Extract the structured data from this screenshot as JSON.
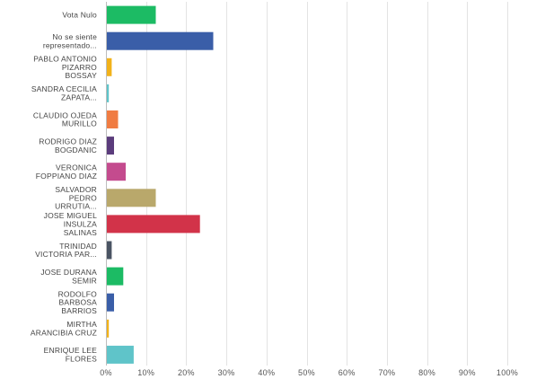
{
  "chart_data": {
    "type": "bar",
    "orientation": "horizontal",
    "title": "",
    "xlabel": "",
    "ylabel": "",
    "xlim": [
      0,
      100
    ],
    "grid": true,
    "legend": "none",
    "categories": [
      [
        "Vota Nulo"
      ],
      [
        "No se siente",
        "representado..."
      ],
      [
        "PABLO ANTONIO",
        "PIZARRO",
        "BOSSAY"
      ],
      [
        "SANDRA CECILIA",
        "ZAPATA..."
      ],
      [
        "CLAUDIO OJEDA",
        "MURILLO"
      ],
      [
        "RODRIGO DIAZ",
        "BOGDANIC"
      ],
      [
        "VERONICA",
        "FOPPIANO DIAZ"
      ],
      [
        "SALVADOR",
        "PEDRO",
        "URRUTIA..."
      ],
      [
        "JOSE MIGUEL",
        "INSULZA",
        "SALINAS"
      ],
      [
        "TRINIDAD",
        "VICTORIA PAR..."
      ],
      [
        "JOSE DURANA",
        "SEMIR"
      ],
      [
        "RODOLFO",
        "BARBOSA",
        "BARRIOS"
      ],
      [
        "MIRTHA",
        "ARANCIBIA CRUZ"
      ],
      [
        "ENRIQUE LEE",
        "FLORES"
      ]
    ],
    "values": [
      12.2,
      26.5,
      1.2,
      0.5,
      2.8,
      1.8,
      4.7,
      12.2,
      23.2,
      1.2,
      4.1,
      1.8,
      0.5,
      6.7
    ],
    "colors": [
      "#1cbb64",
      "#3a5ea8",
      "#f2b21a",
      "#5fc4c9",
      "#f07c42",
      "#5b3c7c",
      "#c44b8e",
      "#b9a86b",
      "#d23349",
      "#4a5463",
      "#1cbb64",
      "#3a5ea8",
      "#f2b21a",
      "#5fc4c9"
    ],
    "x_ticks": [
      0,
      10,
      20,
      30,
      40,
      50,
      60,
      70,
      80,
      90,
      100
    ],
    "x_tick_labels": [
      "0%",
      "10%",
      "20%",
      "30%",
      "40%",
      "50%",
      "60%",
      "70%",
      "80%",
      "90%",
      "100%"
    ]
  }
}
